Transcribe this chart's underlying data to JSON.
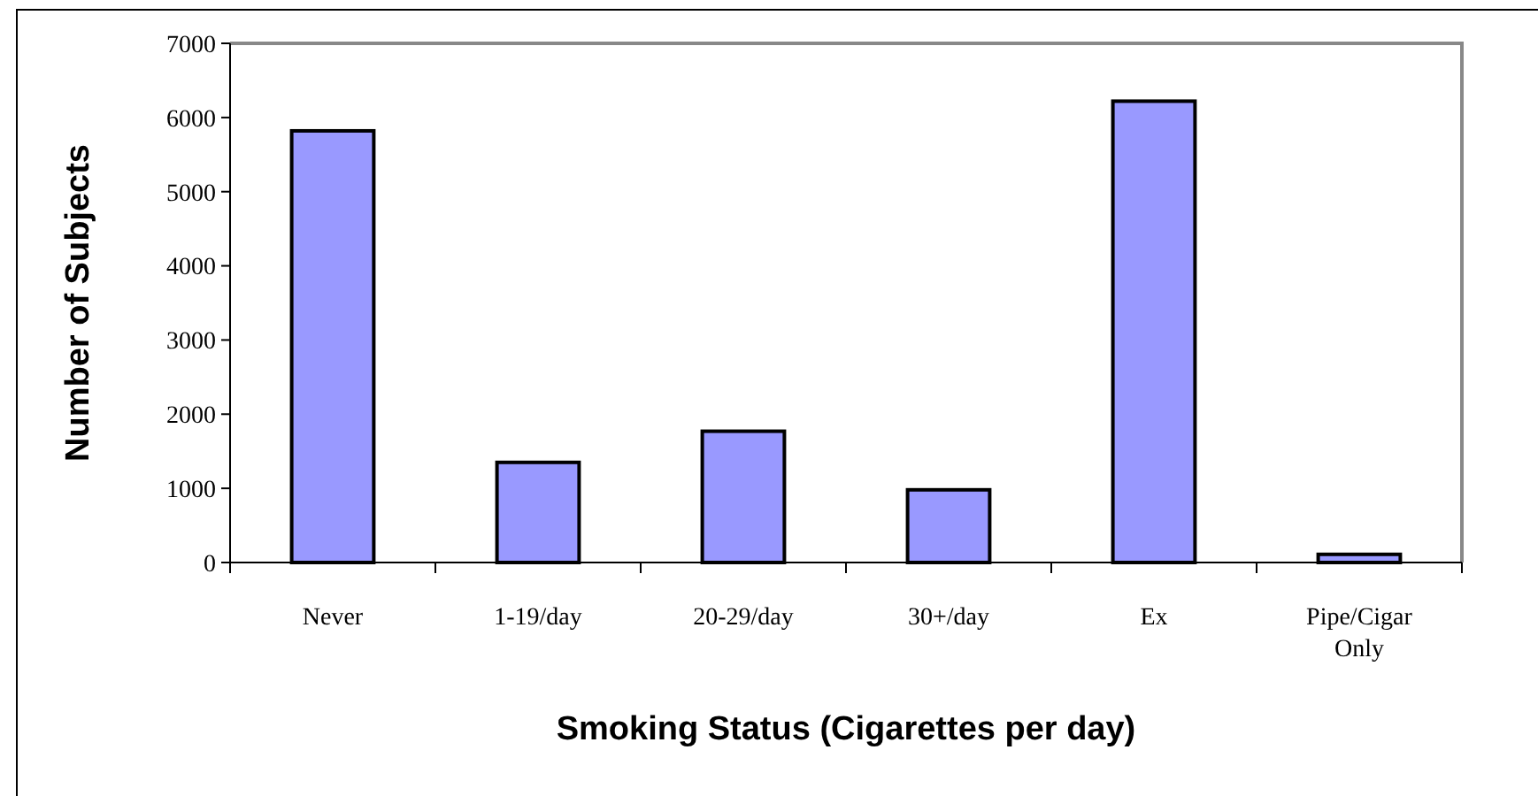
{
  "chart_data": {
    "type": "bar",
    "xlabel": "Smoking Status (Cigarettes per day)",
    "ylabel": "Number of Subjects",
    "categories": [
      "Never",
      "1-19/day",
      "20-29/day",
      "30+/day",
      "Ex",
      "Pipe/Cigar Only"
    ],
    "values": [
      5820,
      1350,
      1770,
      980,
      6220,
      110
    ],
    "color": "#9999ff",
    "ylim": [
      0,
      7000
    ],
    "yticks": [
      0,
      1000,
      2000,
      3000,
      4000,
      5000,
      6000,
      7000
    ],
    "grid": false
  }
}
